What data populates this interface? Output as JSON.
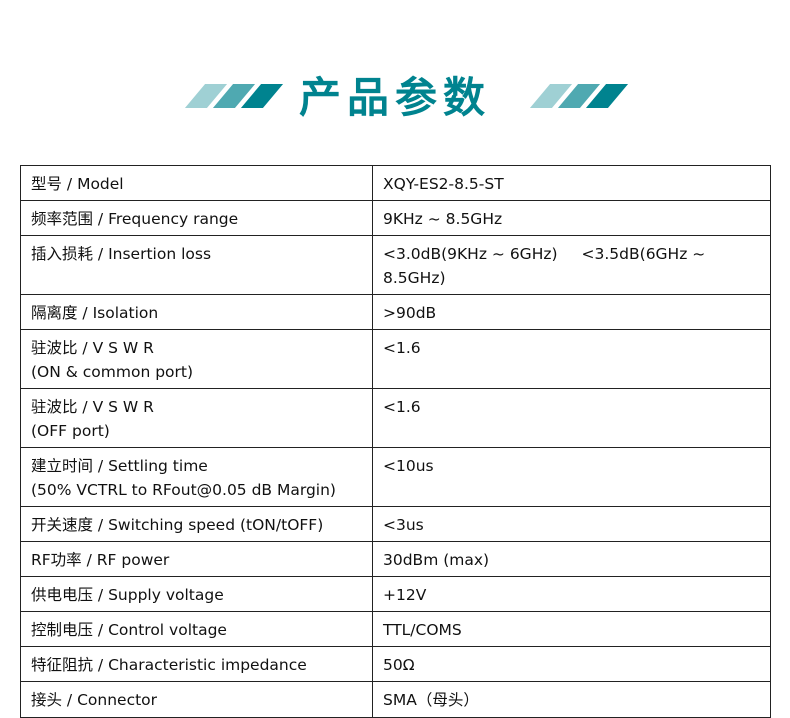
{
  "header": {
    "title": "产品参数",
    "accent": "#00838f",
    "stripe_colors": [
      "#9fd0d4",
      "#4fa9b1",
      "#00838f"
    ]
  },
  "rows": [
    {
      "label": [
        "型号 / Model"
      ],
      "value": [
        "XQY-ES2-8.5-ST"
      ]
    },
    {
      "label": [
        "频率范围 / Frequency range"
      ],
      "value": [
        "9KHz ~ 8.5GHz"
      ]
    },
    {
      "label": [
        "插入损耗 / Insertion loss"
      ],
      "value": [
        "<3.0dB(9KHz ~ 6GHz)",
        "<3.5dB(6GHz ~ 8.5GHz)"
      ]
    },
    {
      "label": [
        "隔离度 / Isolation"
      ],
      "value": [
        ">90dB"
      ]
    },
    {
      "label": [
        "驻波比 / V S W R",
        "(ON & common port)"
      ],
      "value": [
        "<1.6"
      ]
    },
    {
      "label": [
        "驻波比 / V S W R",
        "(OFF port)"
      ],
      "value": [
        "<1.6"
      ]
    },
    {
      "label": [
        "建立时间 / Settling time",
        "(50% VCTRL to RFout@0.05 dB Margin)"
      ],
      "value": [
        "<10us"
      ]
    },
    {
      "label": [
        "开关速度 / Switching speed  (tON/tOFF)"
      ],
      "value": [
        "<3us"
      ]
    },
    {
      "label": [
        "RF功率 / RF power"
      ],
      "value": [
        "30dBm (max)"
      ]
    },
    {
      "label": [
        "供电电压 / Supply voltage"
      ],
      "value": [
        "+12V"
      ]
    },
    {
      "label": [
        "控制电压 / Control voltage"
      ],
      "value": [
        "TTL/COMS"
      ]
    },
    {
      "label": [
        "特征阻抗 / Characteristic impedance"
      ],
      "value": [
        "50Ω"
      ]
    },
    {
      "label": [
        "接头 / Connector"
      ],
      "value": [
        "SMA（母头）"
      ]
    }
  ]
}
